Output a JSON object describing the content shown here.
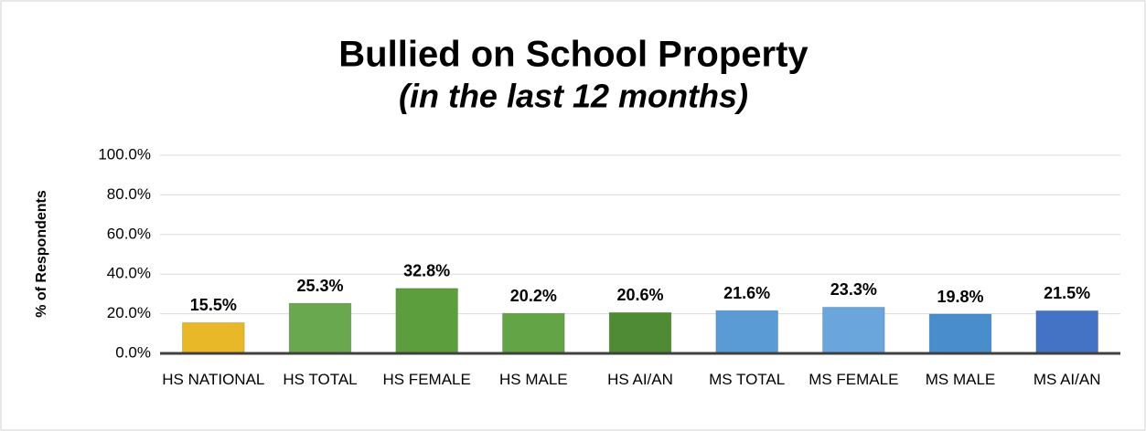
{
  "chart_data": {
    "type": "bar",
    "title": "Bullied on School Property",
    "subtitle": "(in the last 12 months)",
    "ylabel": "% of Respondents",
    "categories": [
      "HS NATIONAL",
      "HS TOTAL",
      "HS FEMALE",
      "HS MALE",
      "HS AI/AN",
      "MS TOTAL",
      "MS FEMALE",
      "MS MALE",
      "MS AI/AN"
    ],
    "values": [
      15.5,
      25.3,
      32.8,
      20.2,
      20.6,
      21.6,
      23.3,
      19.8,
      21.5
    ],
    "value_labels": [
      "15.5%",
      "25.3%",
      "32.8%",
      "20.2%",
      "20.6%",
      "21.6%",
      "23.3%",
      "19.8%",
      "21.5%"
    ],
    "colors": [
      "#e8b828",
      "#6aa84f",
      "#5c9e3e",
      "#62a446",
      "#4f8a34",
      "#5b9bd5",
      "#6aa6dc",
      "#4a8dcc",
      "#4472c4"
    ],
    "ylim": [
      0,
      100
    ],
    "yticks": [
      {
        "value": 0,
        "label": "0.0%"
      },
      {
        "value": 20,
        "label": "20.0%"
      },
      {
        "value": 40,
        "label": "40.0%"
      },
      {
        "value": 60,
        "label": "60.0%"
      },
      {
        "value": 80,
        "label": "80.0%"
      },
      {
        "value": 100,
        "label": "100.0%"
      }
    ],
    "grid": true
  }
}
